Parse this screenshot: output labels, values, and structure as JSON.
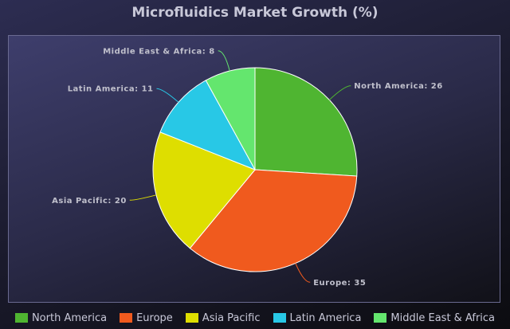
{
  "chart_data": {
    "type": "pie",
    "title": "Microfluidics Market Growth (%)",
    "categories": [
      "North America",
      "Europe",
      "Asia Pacific",
      "Latin America",
      "Middle East & Africa"
    ],
    "values": [
      26,
      35,
      20,
      11,
      8
    ],
    "colors": [
      "#4fb531",
      "#f05a1e",
      "#dede00",
      "#28c8e6",
      "#64e66e"
    ],
    "label_separator": ": ",
    "legend_position": "bottom"
  }
}
